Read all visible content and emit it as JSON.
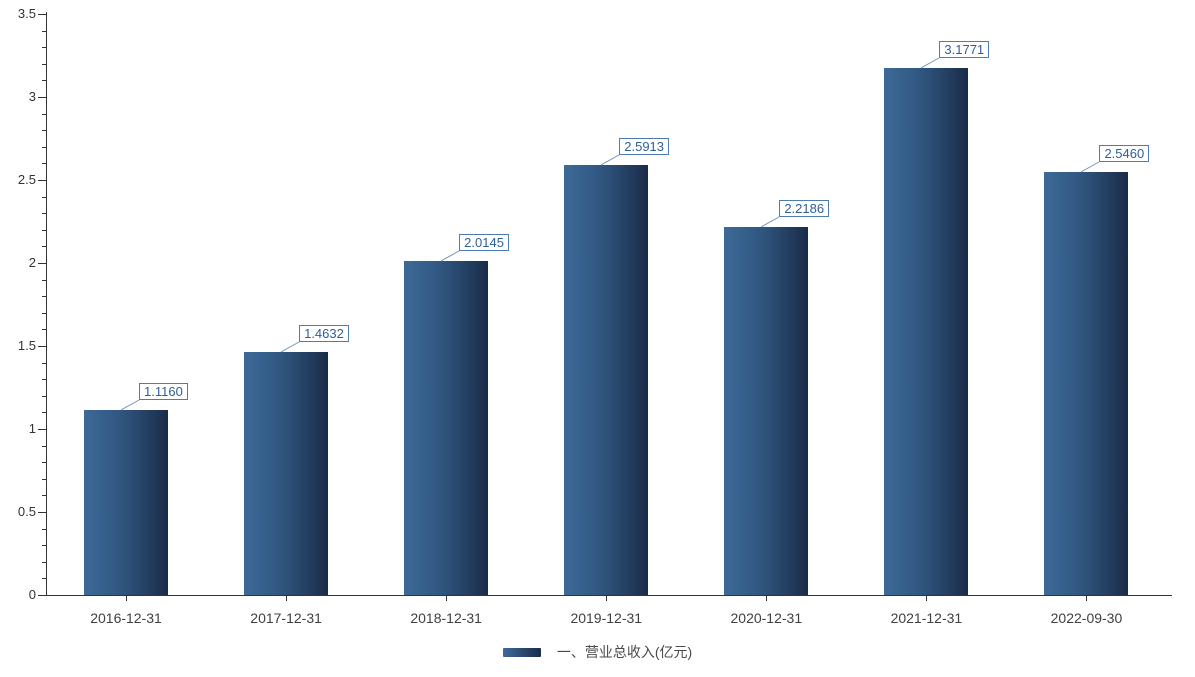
{
  "chart_data": {
    "type": "bar",
    "title": "",
    "xlabel": "",
    "ylabel": "",
    "categories": [
      "2016-12-31",
      "2017-12-31",
      "2018-12-31",
      "2019-12-31",
      "2020-12-31",
      "2021-12-31",
      "2022-09-30"
    ],
    "series": [
      {
        "name": "一、营业总收入(亿元)",
        "values": [
          1.116,
          1.4632,
          2.0145,
          2.5913,
          2.2186,
          3.1771,
          2.546
        ],
        "labels": [
          "1.1160",
          "1.4632",
          "2.0145",
          "2.5913",
          "2.2186",
          "3.1771",
          "2.5460"
        ]
      }
    ],
    "ylim": [
      0,
      3.5
    ],
    "y_major_step": 0.5,
    "y_minor_step": 0.1,
    "y_tick_labels": [
      "0",
      "0.5",
      "1",
      "1.5",
      "2",
      "2.5",
      "3",
      "3.5"
    ],
    "grid": false,
    "legend_position": "bottom",
    "colors": {
      "bar_gradient_start": "#3d6a99",
      "bar_gradient_end": "#1b2c49",
      "value_label_text": "#2d5f97",
      "value_label_border": "#4d7dad",
      "leader_line": "#7494b8",
      "axis_line": "#333333",
      "y_tick_text": "#333333",
      "category_text": "#404040",
      "legend_text": "#4a4a4a"
    }
  }
}
